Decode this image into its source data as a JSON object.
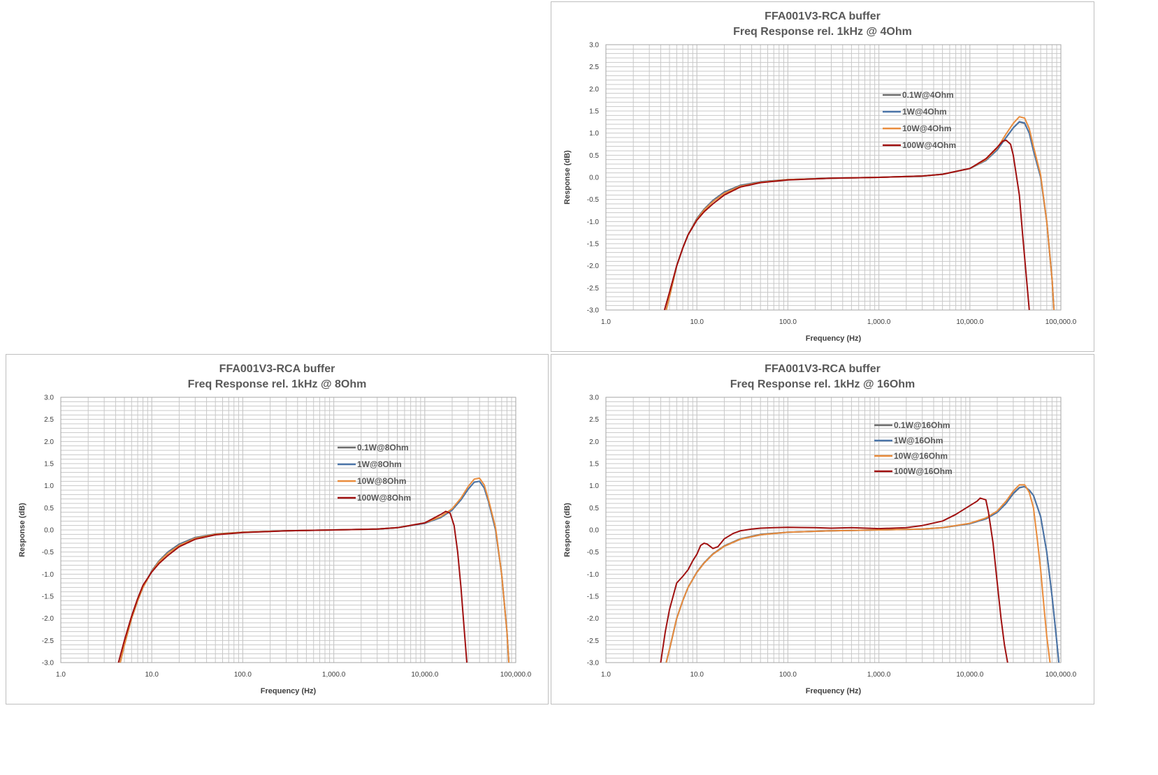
{
  "colors": {
    "gray": "#6b6b6b",
    "blue": "#4a74a8",
    "orange": "#e98c3c",
    "darkred": "#a01010",
    "grid": "#c8c8c8",
    "border": "#bfbfbf"
  },
  "chart_data": [
    {
      "type": "line",
      "id": "chart-4ohm",
      "title": [
        "FFA001V3-RCA buffer",
        "Freq Response rel. 1kHz @ 4Ohm"
      ],
      "xlabel": "Frequency (Hz)",
      "ylabel": "Response (dB)",
      "x_scale": "log",
      "xlim": [
        1,
        100000
      ],
      "ylim": [
        -3,
        3
      ],
      "x_ticks": [
        "1.0",
        "10.0",
        "100.0",
        "1,000.0",
        "10,000.0",
        "100,000.0"
      ],
      "y_ticks": [
        "3.0",
        "2.5",
        "2.0",
        "1.5",
        "1.0",
        "0.5",
        "0.0",
        "-0.5",
        "-1.0",
        "-1.5",
        "-2.0",
        "-2.5",
        "-3.0"
      ],
      "grid": true,
      "legend_position": "upper-middle-right",
      "series": [
        {
          "name": "0.1W@4Ohm",
          "color": "gray",
          "x": [
            4.6,
            5,
            6,
            7,
            8,
            10,
            12,
            15,
            20,
            30,
            50,
            100,
            300,
            1000,
            3000,
            5000,
            10000,
            15000,
            20000,
            25000,
            30000,
            35000,
            40000,
            45000,
            50000,
            60000,
            70000,
            80000,
            84000
          ],
          "y": [
            -3.0,
            -2.7,
            -2.0,
            -1.6,
            -1.3,
            -0.93,
            -0.72,
            -0.52,
            -0.33,
            -0.18,
            -0.1,
            -0.05,
            -0.02,
            0.0,
            0.03,
            0.07,
            0.2,
            0.38,
            0.62,
            0.9,
            1.12,
            1.25,
            1.22,
            1.0,
            0.6,
            0.0,
            -1.0,
            -2.3,
            -3.0
          ]
        },
        {
          "name": "1W@4Ohm",
          "color": "blue",
          "x": [
            4.6,
            5,
            6,
            7,
            8,
            10,
            12,
            15,
            20,
            30,
            50,
            100,
            300,
            1000,
            3000,
            5000,
            10000,
            15000,
            20000,
            25000,
            30000,
            35000,
            40000,
            45000,
            50000,
            60000,
            70000,
            80000,
            84000
          ],
          "y": [
            -3.0,
            -2.7,
            -2.0,
            -1.6,
            -1.3,
            -0.94,
            -0.73,
            -0.53,
            -0.34,
            -0.19,
            -0.1,
            -0.05,
            -0.02,
            0.0,
            0.03,
            0.07,
            0.2,
            0.38,
            0.62,
            0.9,
            1.12,
            1.26,
            1.23,
            1.0,
            0.6,
            0.0,
            -1.0,
            -2.3,
            -3.0
          ]
        },
        {
          "name": "10W@4Ohm",
          "color": "orange",
          "x": [
            4.6,
            5,
            6,
            7,
            8,
            10,
            12,
            15,
            20,
            30,
            50,
            100,
            300,
            1000,
            3000,
            5000,
            10000,
            15000,
            20000,
            25000,
            30000,
            35000,
            40000,
            45000,
            50000,
            60000,
            70000,
            80000,
            84000
          ],
          "y": [
            -3.0,
            -2.7,
            -2.0,
            -1.6,
            -1.3,
            -0.95,
            -0.74,
            -0.55,
            -0.36,
            -0.2,
            -0.11,
            -0.05,
            -0.02,
            0.0,
            0.03,
            0.07,
            0.2,
            0.4,
            0.66,
            0.98,
            1.22,
            1.37,
            1.34,
            1.1,
            0.7,
            0.05,
            -1.0,
            -2.3,
            -3.0
          ]
        },
        {
          "name": "100W@4Ohm",
          "color": "darkred",
          "x": [
            4.4,
            5,
            6,
            7,
            8,
            10,
            12,
            15,
            20,
            30,
            50,
            100,
            300,
            1000,
            3000,
            5000,
            10000,
            15000,
            20000,
            23000,
            25000,
            28000,
            30000,
            35000,
            38000,
            42000,
            45000
          ],
          "y": [
            -3.0,
            -2.6,
            -2.0,
            -1.6,
            -1.3,
            -0.97,
            -0.78,
            -0.6,
            -0.4,
            -0.22,
            -0.12,
            -0.06,
            -0.02,
            0.0,
            0.03,
            0.07,
            0.2,
            0.42,
            0.68,
            0.82,
            0.84,
            0.75,
            0.5,
            -0.4,
            -1.3,
            -2.3,
            -3.0
          ]
        }
      ]
    },
    {
      "type": "line",
      "id": "chart-8ohm",
      "title": [
        "FFA001V3-RCA buffer",
        "Freq Response rel. 1kHz @ 8Ohm"
      ],
      "xlabel": "Frequency (Hz)",
      "ylabel": "Response (dB)",
      "x_scale": "log",
      "xlim": [
        1,
        100000
      ],
      "ylim": [
        -3,
        3
      ],
      "x_ticks": [
        "1.0",
        "10.0",
        "100.0",
        "1,000.0",
        "10,000.0",
        "100,000.0"
      ],
      "y_ticks": [
        "3.0",
        "2.5",
        "2.0",
        "1.5",
        "1.0",
        "0.5",
        "0.0",
        "-0.5",
        "-1.0",
        "-1.5",
        "-2.0",
        "-2.5",
        "-3.0"
      ],
      "grid": true,
      "legend_position": "upper-middle-right",
      "series": [
        {
          "name": "0.1W@8Ohm",
          "color": "gray",
          "x": [
            4.5,
            5,
            6,
            7,
            8,
            10,
            12,
            15,
            20,
            30,
            50,
            100,
            300,
            1000,
            3000,
            5000,
            10000,
            15000,
            20000,
            25000,
            30000,
            35000,
            40000,
            45000,
            50000,
            60000,
            70000,
            80000,
            84000
          ],
          "y": [
            -3.0,
            -2.6,
            -2.0,
            -1.6,
            -1.3,
            -0.92,
            -0.7,
            -0.5,
            -0.32,
            -0.17,
            -0.09,
            -0.05,
            -0.02,
            0.0,
            0.02,
            0.05,
            0.15,
            0.28,
            0.45,
            0.68,
            0.92,
            1.08,
            1.1,
            0.95,
            0.65,
            0.0,
            -1.0,
            -2.3,
            -3.0
          ]
        },
        {
          "name": "1W@8Ohm",
          "color": "blue",
          "x": [
            4.5,
            5,
            6,
            7,
            8,
            10,
            12,
            15,
            20,
            30,
            50,
            100,
            300,
            1000,
            3000,
            5000,
            10000,
            15000,
            20000,
            25000,
            30000,
            35000,
            40000,
            45000,
            50000,
            60000,
            70000,
            80000,
            84000
          ],
          "y": [
            -3.0,
            -2.6,
            -2.0,
            -1.6,
            -1.3,
            -0.93,
            -0.71,
            -0.51,
            -0.33,
            -0.18,
            -0.1,
            -0.05,
            -0.02,
            0.0,
            0.02,
            0.05,
            0.15,
            0.28,
            0.45,
            0.68,
            0.92,
            1.08,
            1.1,
            0.95,
            0.65,
            0.0,
            -1.0,
            -2.3,
            -3.0
          ]
        },
        {
          "name": "10W@8Ohm",
          "color": "orange",
          "x": [
            4.5,
            5,
            6,
            7,
            8,
            10,
            12,
            15,
            20,
            30,
            50,
            100,
            300,
            1000,
            3000,
            5000,
            10000,
            15000,
            20000,
            25000,
            30000,
            35000,
            40000,
            45000,
            50000,
            60000,
            70000,
            80000,
            84000
          ],
          "y": [
            -3.0,
            -2.6,
            -2.0,
            -1.6,
            -1.3,
            -0.94,
            -0.72,
            -0.53,
            -0.35,
            -0.19,
            -0.1,
            -0.05,
            -0.02,
            0.0,
            0.02,
            0.05,
            0.16,
            0.3,
            0.48,
            0.72,
            0.98,
            1.15,
            1.17,
            1.02,
            0.7,
            0.05,
            -1.0,
            -2.3,
            -3.0
          ]
        },
        {
          "name": "100W@8Ohm",
          "color": "darkred",
          "x": [
            4.3,
            5,
            6,
            7,
            8,
            10,
            12,
            15,
            20,
            30,
            50,
            100,
            300,
            1000,
            3000,
            5000,
            10000,
            15000,
            17000,
            19000,
            21000,
            23000,
            25000,
            27000,
            29000
          ],
          "y": [
            -3.0,
            -2.5,
            -1.95,
            -1.55,
            -1.25,
            -0.95,
            -0.76,
            -0.58,
            -0.38,
            -0.21,
            -0.11,
            -0.06,
            -0.02,
            0.0,
            0.02,
            0.05,
            0.16,
            0.35,
            0.42,
            0.38,
            0.1,
            -0.5,
            -1.3,
            -2.2,
            -3.0
          ]
        }
      ]
    },
    {
      "type": "line",
      "id": "chart-16ohm",
      "title": [
        "FFA001V3-RCA buffer",
        "Freq Response rel. 1kHz @ 16Ohm"
      ],
      "xlabel": "Frequency (Hz)",
      "ylabel": "Response (dB)",
      "x_scale": "log",
      "xlim": [
        1,
        100000
      ],
      "ylim": [
        -3,
        3
      ],
      "x_ticks": [
        "1.0",
        "10.0",
        "100.0",
        "1,000.0",
        "10,000.0",
        "100,000.0"
      ],
      "y_ticks": [
        "3.0",
        "2.5",
        "2.0",
        "1.5",
        "1.0",
        "0.5",
        "0.0",
        "-0.5",
        "-1.0",
        "-1.5",
        "-2.0",
        "-2.5",
        "-3.0"
      ],
      "grid": true,
      "legend_position": "top-middle-right",
      "series": [
        {
          "name": "0.1W@16Ohm",
          "color": "gray",
          "x": [
            4.6,
            5,
            6,
            7,
            8,
            10,
            12,
            15,
            20,
            30,
            50,
            100,
            300,
            1000,
            3000,
            5000,
            10000,
            15000,
            20000,
            25000,
            30000,
            35000,
            40000,
            45000,
            50000,
            60000,
            70000,
            80000,
            90000,
            95000
          ],
          "y": [
            -3.0,
            -2.7,
            -2.0,
            -1.6,
            -1.3,
            -0.95,
            -0.74,
            -0.54,
            -0.36,
            -0.2,
            -0.1,
            -0.05,
            -0.02,
            0.0,
            0.02,
            0.05,
            0.14,
            0.25,
            0.4,
            0.6,
            0.82,
            0.95,
            0.98,
            0.9,
            0.78,
            0.3,
            -0.5,
            -1.5,
            -2.5,
            -3.0
          ]
        },
        {
          "name": "1W@16Ohm",
          "color": "blue",
          "x": [
            4.6,
            5,
            6,
            7,
            8,
            10,
            12,
            15,
            20,
            30,
            50,
            100,
            300,
            1000,
            3000,
            5000,
            10000,
            15000,
            20000,
            25000,
            30000,
            35000,
            40000,
            45000,
            50000,
            60000,
            70000,
            80000,
            90000,
            95000
          ],
          "y": [
            -3.0,
            -2.7,
            -2.0,
            -1.6,
            -1.3,
            -0.96,
            -0.75,
            -0.55,
            -0.37,
            -0.21,
            -0.11,
            -0.05,
            -0.02,
            0.0,
            0.02,
            0.05,
            0.14,
            0.25,
            0.4,
            0.6,
            0.83,
            0.96,
            0.98,
            0.9,
            0.78,
            0.3,
            -0.5,
            -1.5,
            -2.5,
            -3.0
          ]
        },
        {
          "name": "10W@16Ohm",
          "color": "orange",
          "x": [
            4.6,
            5,
            6,
            7,
            8,
            10,
            12,
            15,
            20,
            30,
            50,
            100,
            300,
            1000,
            3000,
            5000,
            10000,
            15000,
            20000,
            25000,
            30000,
            35000,
            40000,
            45000,
            50000,
            55000,
            60000,
            65000,
            70000,
            76000
          ],
          "y": [
            -3.0,
            -2.7,
            -2.0,
            -1.6,
            -1.3,
            -0.96,
            -0.75,
            -0.55,
            -0.37,
            -0.21,
            -0.11,
            -0.05,
            -0.02,
            0.0,
            0.02,
            0.05,
            0.15,
            0.27,
            0.43,
            0.65,
            0.88,
            1.02,
            1.02,
            0.85,
            0.5,
            -0.2,
            -0.9,
            -1.7,
            -2.4,
            -3.0
          ]
        },
        {
          "name": "100W@16Ohm",
          "color": "darkred",
          "x": [
            4,
            4.5,
            5,
            6,
            7,
            8,
            9,
            10,
            11,
            12,
            13,
            15,
            17,
            20,
            25,
            30,
            40,
            50,
            70,
            100,
            200,
            300,
            500,
            1000,
            2000,
            3000,
            5000,
            7000,
            10000,
            12000,
            13000,
            14000,
            15000,
            16000,
            18000,
            20000,
            22000,
            24000,
            26000
          ],
          "y": [
            -3.0,
            -2.3,
            -1.8,
            -1.2,
            -1.05,
            -0.9,
            -0.7,
            -0.55,
            -0.35,
            -0.3,
            -0.32,
            -0.42,
            -0.38,
            -0.2,
            -0.08,
            -0.02,
            0.02,
            0.04,
            0.05,
            0.06,
            0.05,
            0.04,
            0.05,
            0.03,
            0.05,
            0.1,
            0.2,
            0.35,
            0.55,
            0.65,
            0.72,
            0.7,
            0.68,
            0.4,
            -0.3,
            -1.2,
            -2.0,
            -2.6,
            -3.0
          ]
        }
      ]
    }
  ]
}
